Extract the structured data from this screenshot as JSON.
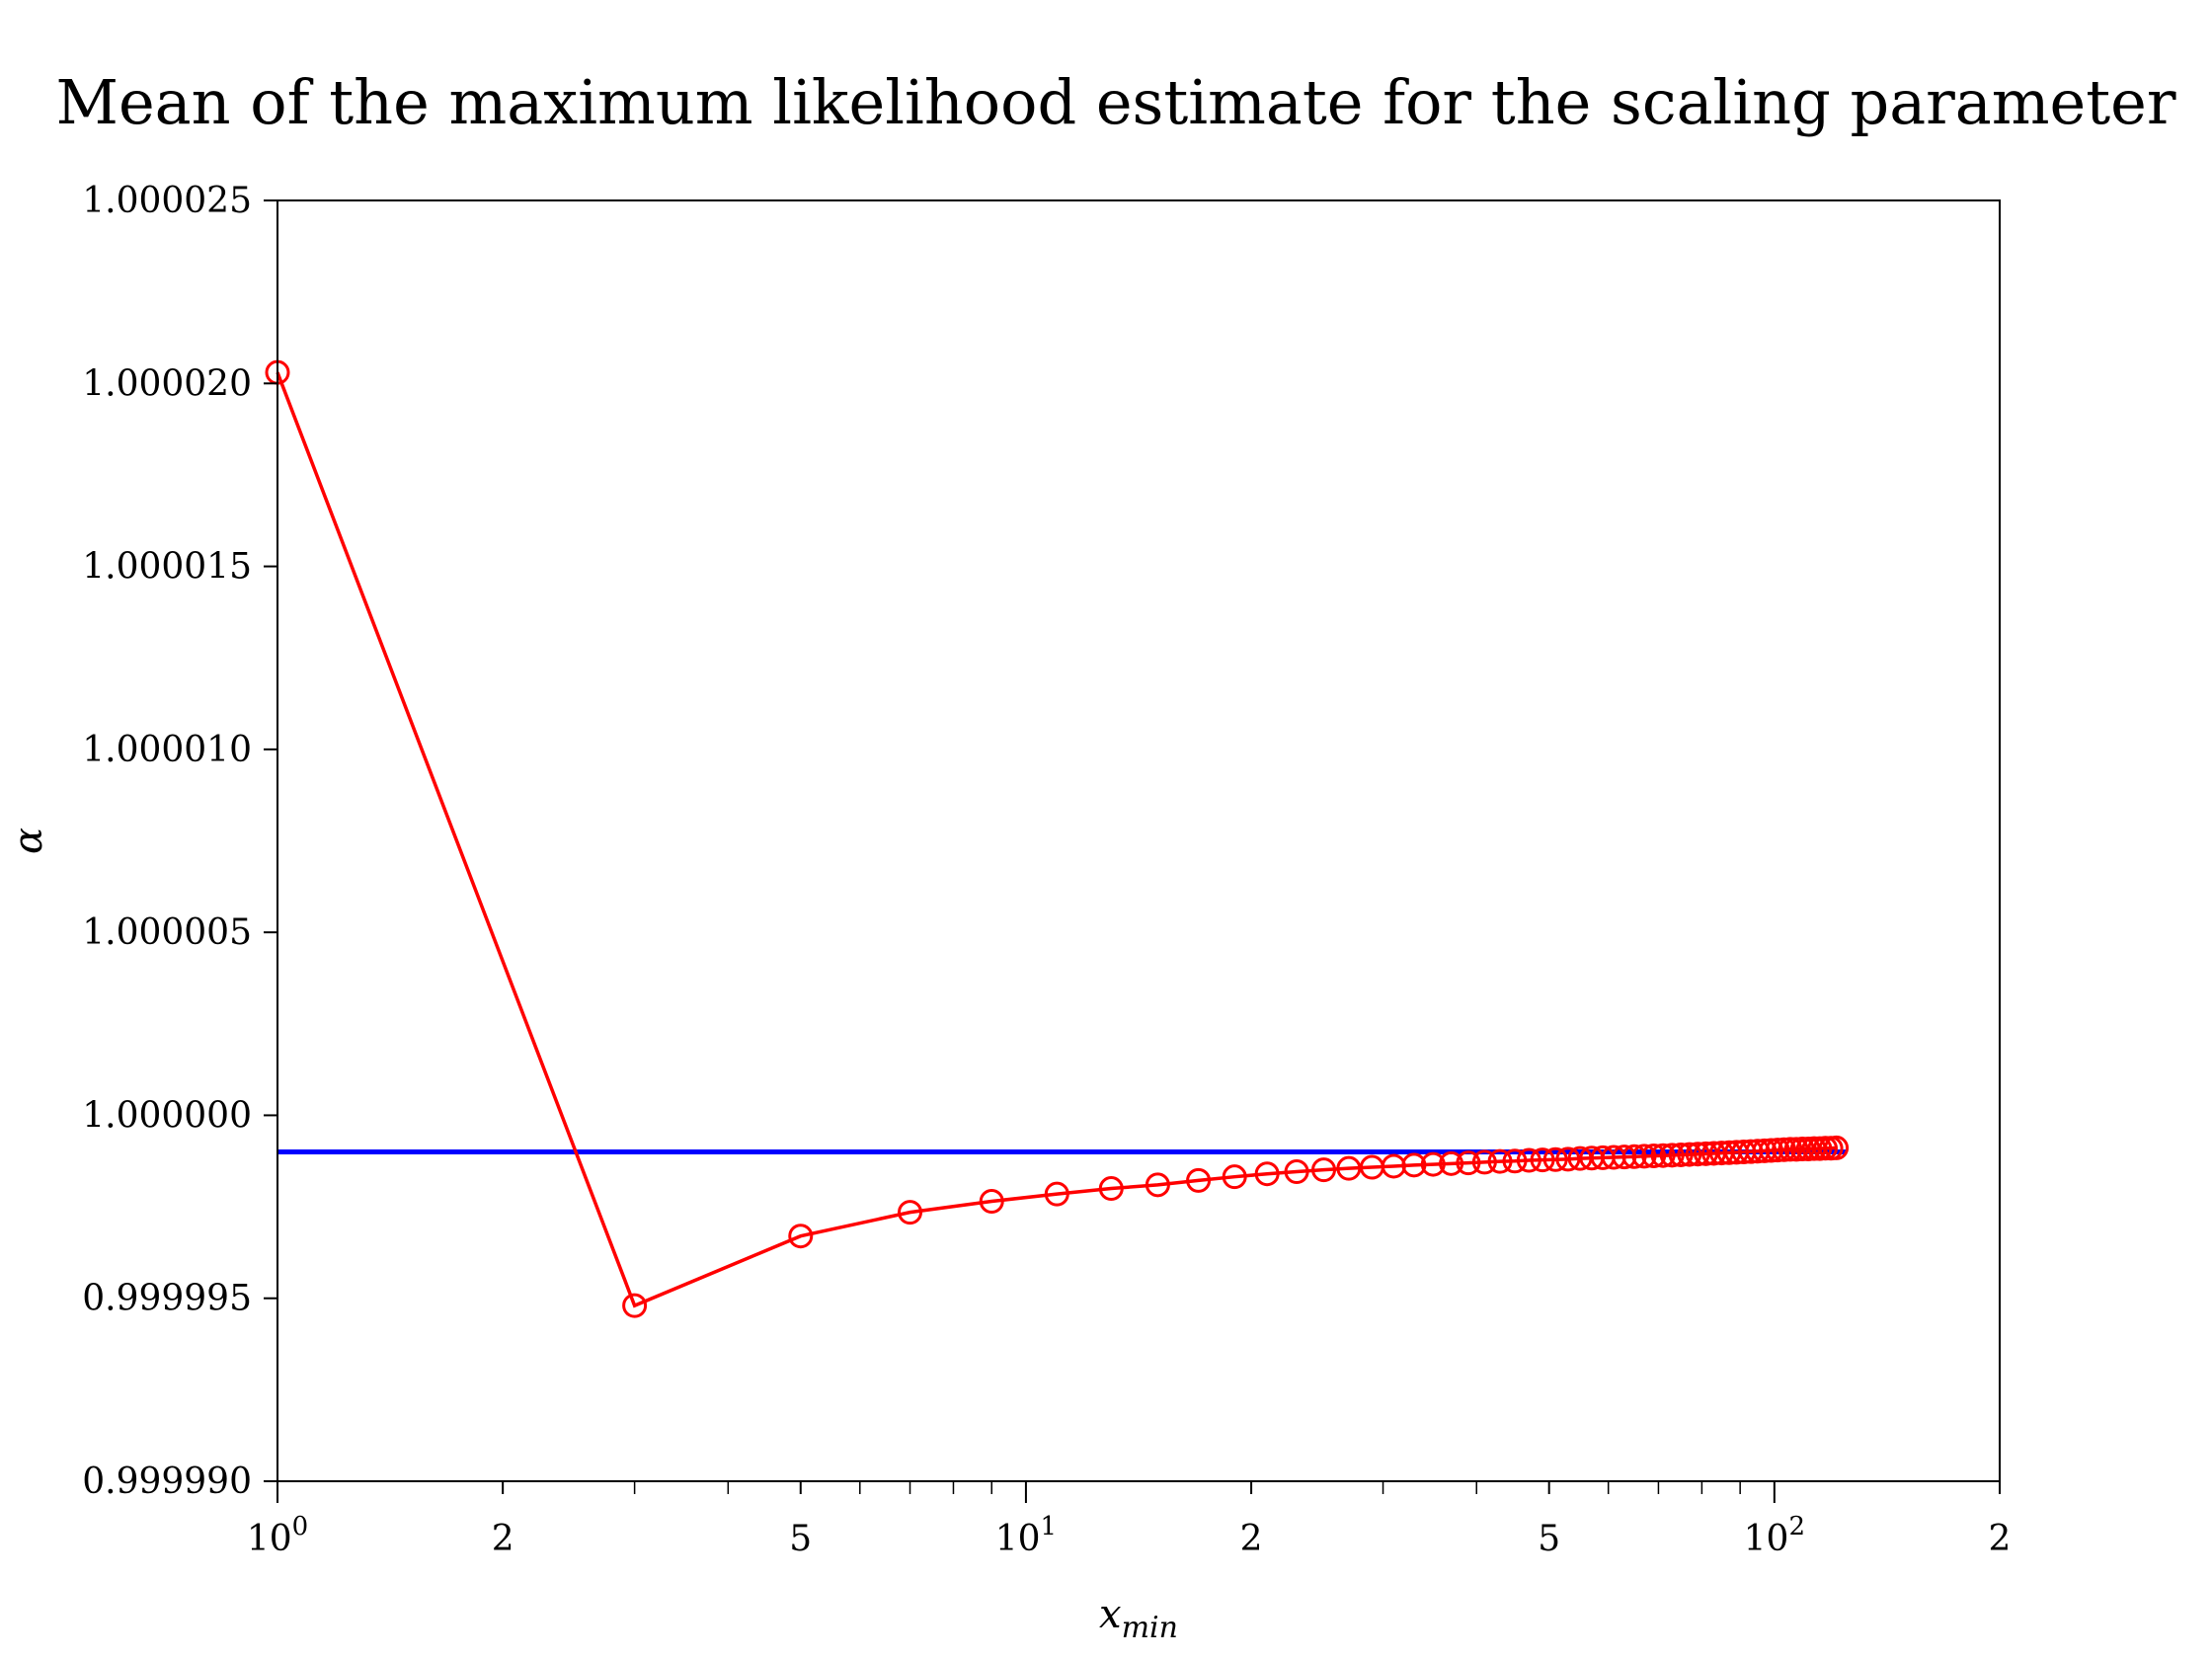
{
  "chart_data": {
    "type": "line",
    "title": "Mean of the maximum likelihood estimate for the scaling parameter",
    "xlabel": {
      "base": "x",
      "subscript": "min"
    },
    "ylabel": "α",
    "xscale": "log",
    "xlim": [
      1,
      200
    ],
    "ylim": [
      0.99999,
      1.000025
    ],
    "grid": false,
    "legend": "none",
    "x_ticks": [
      {
        "value": 1,
        "label": "10",
        "sup": "0",
        "major": true
      },
      {
        "value": 2,
        "label": "2",
        "major": false
      },
      {
        "value": 5,
        "label": "5",
        "major": false
      },
      {
        "value": 10,
        "label": "10",
        "sup": "1",
        "major": true
      },
      {
        "value": 20,
        "label": "2",
        "major": false
      },
      {
        "value": 50,
        "label": "5",
        "major": false
      },
      {
        "value": 100,
        "label": "10",
        "sup": "2",
        "major": true
      },
      {
        "value": 200,
        "label": "2",
        "major": false
      }
    ],
    "x_minor_ticks": [
      3,
      4,
      6,
      7,
      8,
      9,
      30,
      40,
      60,
      70,
      80,
      90
    ],
    "y_ticks": [
      {
        "value": 0.99999,
        "label": "0.999990"
      },
      {
        "value": 0.999995,
        "label": "0.999995"
      },
      {
        "value": 1.0,
        "label": "1.000000"
      },
      {
        "value": 1.000005,
        "label": "1.000005"
      },
      {
        "value": 1.00001,
        "label": "1.000010"
      },
      {
        "value": 1.000015,
        "label": "1.000015"
      },
      {
        "value": 1.00002,
        "label": "1.000020"
      },
      {
        "value": 1.000025,
        "label": "1.000025"
      }
    ],
    "reference_line": {
      "y": 0.999999,
      "x_range": [
        1,
        125
      ],
      "color": "#0000ff"
    },
    "series": [
      {
        "color": "#ff0000",
        "marker": "circle-open",
        "x": [
          1,
          3,
          5,
          7,
          9,
          11,
          13,
          15,
          17,
          19,
          21,
          23,
          25,
          27,
          29,
          31,
          33,
          35,
          37,
          39,
          41,
          43,
          45,
          47,
          49,
          51,
          53,
          55,
          57,
          59,
          61,
          63,
          65,
          67,
          69,
          71,
          73,
          75,
          77,
          79,
          81,
          83,
          85,
          87,
          89,
          91,
          93,
          95,
          97,
          99,
          101,
          103,
          105,
          107,
          109,
          111,
          113,
          115,
          117,
          119,
          121
        ],
        "y": [
          1.0000203,
          0.9999948,
          0.9999967,
          0.99999735,
          0.99999765,
          0.99999785,
          0.999998,
          0.9999981,
          0.99999822,
          0.99999832,
          0.9999984,
          0.99999846,
          0.99999851,
          0.99999855,
          0.99999858,
          0.99999861,
          0.99999864,
          0.99999866,
          0.99999868,
          0.9999987,
          0.99999872,
          0.99999874,
          0.99999875,
          0.99999877,
          0.99999878,
          0.99999879,
          0.9999988,
          0.99999882,
          0.99999883,
          0.99999884,
          0.99999885,
          0.99999886,
          0.99999887,
          0.99999888,
          0.99999889,
          0.9999989,
          0.99999891,
          0.99999892,
          0.99999893,
          0.99999894,
          0.99999895,
          0.99999896,
          0.99999897,
          0.99999898,
          0.99999899,
          0.999999,
          0.99999901,
          0.99999902,
          0.99999903,
          0.99999904,
          0.99999905,
          0.99999906,
          0.99999907,
          0.99999907,
          0.99999908,
          0.99999908,
          0.99999909,
          0.99999909,
          0.9999991,
          0.9999991,
          0.99999911
        ]
      }
    ]
  }
}
